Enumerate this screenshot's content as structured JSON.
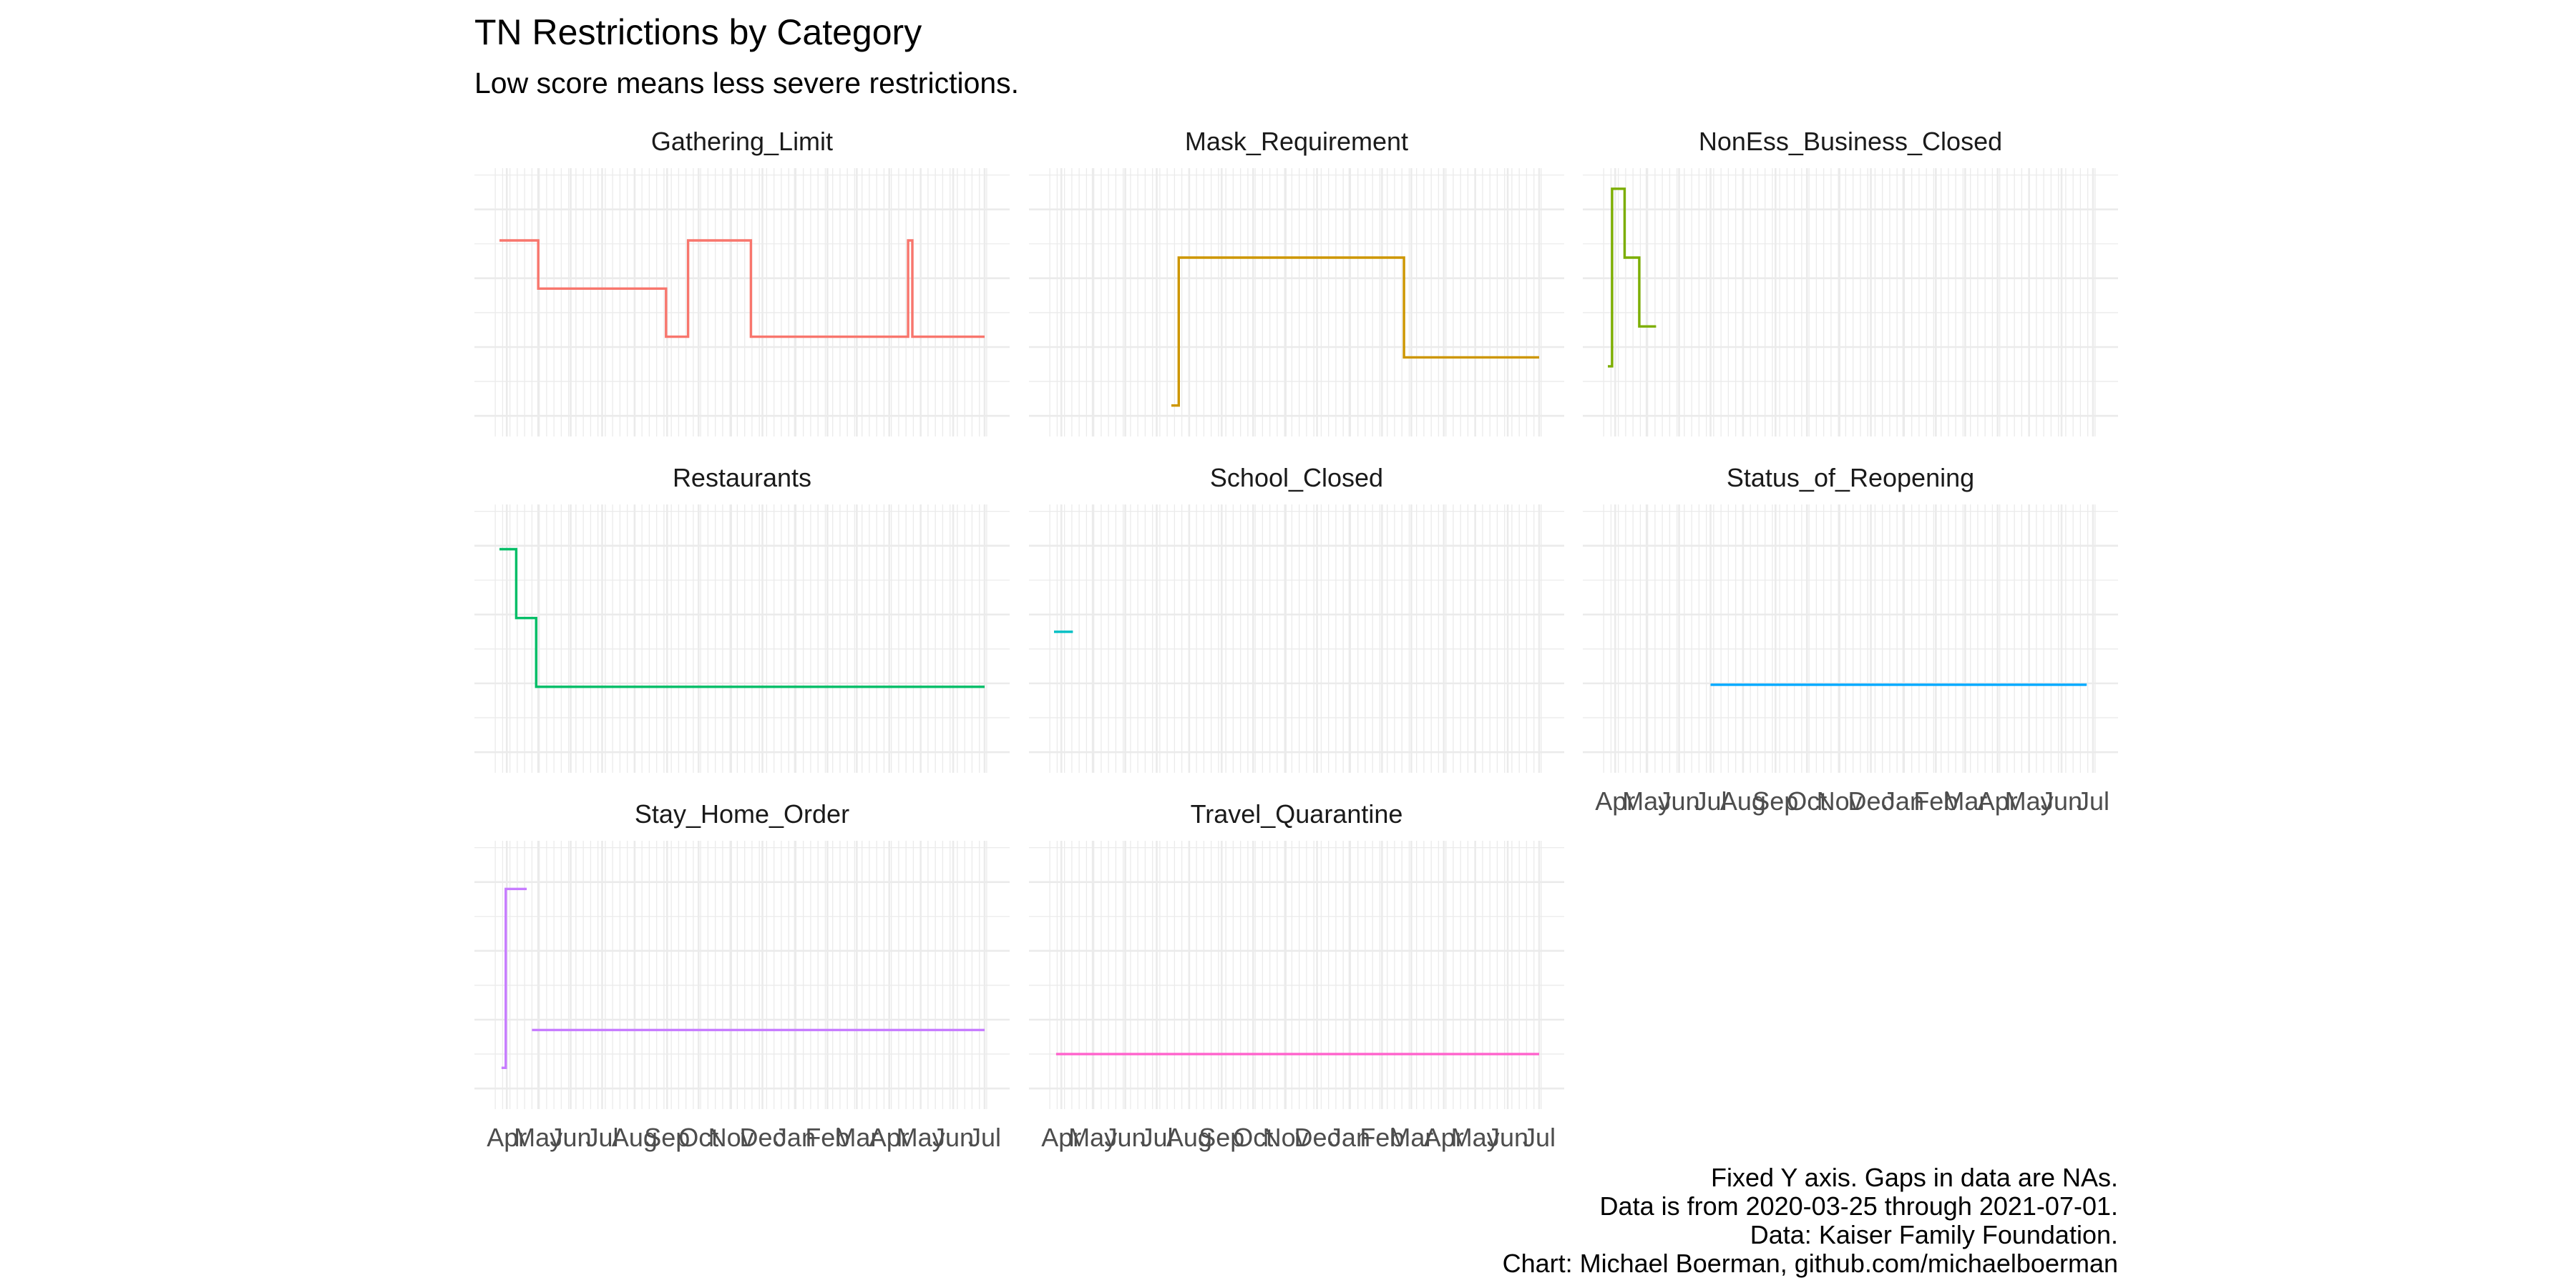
{
  "chart_data": {
    "type": "line",
    "title": "TN Restrictions by Category",
    "subtitle": "Low score means less severe restrictions.",
    "caption": [
      "Fixed Y axis. Gaps in data are NAs.",
      "Data is from 2020-03-25 through 2021-07-01.",
      "Data: Kaiser Family Foundation.",
      "Chart: Michael Boerman, github.com/michaelboerman"
    ],
    "facet_scales": "fixed y",
    "x_range": [
      "2020-03-25",
      "2021-07-01"
    ],
    "y_range": [
      -0.3,
      3.6
    ],
    "y_major_ticks": [
      0,
      1,
      2,
      3
    ],
    "y_tick_labels_shown": false,
    "grid": true,
    "x_tick_labels": [
      "Apr",
      "May",
      "Jun",
      "Jul",
      "Aug",
      "Sep",
      "Oct",
      "Nov",
      "Dec",
      "Jan",
      "Feb",
      "Mar",
      "Apr",
      "May",
      "Jun",
      "Jul"
    ],
    "x_ticks": [
      "2020-04-01",
      "2020-05-01",
      "2020-06-01",
      "2020-07-01",
      "2020-08-01",
      "2020-09-01",
      "2020-10-01",
      "2020-11-01",
      "2020-12-01",
      "2021-01-01",
      "2021-02-01",
      "2021-03-01",
      "2021-04-01",
      "2021-05-01",
      "2021-06-01",
      "2021-07-01"
    ],
    "panels": [
      {
        "name": "Gathering_Limit",
        "color": "#F8766D",
        "x": [
          "2020-03-25",
          "2020-05-01",
          "2020-05-01",
          "2020-08-31",
          "2020-08-31",
          "2020-09-21",
          "2020-09-21",
          "2020-11-20",
          "2020-11-20",
          "2021-04-19",
          "2021-04-19",
          "2021-04-23",
          "2021-04-23",
          "2021-07-01"
        ],
        "y": [
          2.55,
          2.55,
          1.85,
          1.85,
          1.15,
          1.15,
          2.55,
          2.55,
          1.15,
          1.15,
          2.55,
          2.55,
          1.15,
          1.15
        ]
      },
      {
        "name": "Mask_Requirement",
        "color": "#CD9600",
        "x": [
          "2020-07-15",
          "2020-07-22",
          "2020-07-22",
          "2021-02-22",
          "2021-02-22",
          "2021-07-01"
        ],
        "y": [
          0.15,
          0.15,
          2.3,
          2.3,
          0.85,
          0.85
        ]
      },
      {
        "name": "NonEss_Business_Closed",
        "color": "#7CAE00",
        "x": [
          "2020-03-25",
          "2020-03-29",
          "2020-03-29",
          "2020-04-10",
          "2020-04-10",
          "2020-04-24",
          "2020-04-24",
          "2020-05-01",
          "2020-05-01",
          "2020-05-10"
        ],
        "y": [
          0.72,
          0.72,
          3.3,
          3.3,
          2.3,
          2.3,
          1.3,
          1.3,
          1.3,
          1.3
        ]
      },
      {
        "name": "Restaurants",
        "color": "#00BE67",
        "x": [
          "2020-03-25",
          "2020-04-10",
          "2020-04-10",
          "2020-04-29",
          "2020-04-29",
          "2021-07-01"
        ],
        "y": [
          2.95,
          2.95,
          1.95,
          1.95,
          0.95,
          0.95
        ]
      },
      {
        "name": "School_Closed",
        "color": "#00BFC4",
        "x": [
          "2020-03-25",
          "2020-04-12"
        ],
        "y": [
          1.75,
          1.75
        ]
      },
      {
        "name": "Status_of_Reopening",
        "color": "#00A9FF",
        "x": [
          "2020-07-01",
          "2021-06-25"
        ],
        "y": [
          0.98,
          0.98
        ]
      },
      {
        "name": "Stay_Home_Order",
        "color": "#C77CFF",
        "x": [
          "2020-03-27",
          "2020-03-31",
          "2020-03-31",
          "2020-04-20",
          "2020-04-20",
          "2020-04-25",
          "2020-04-25",
          "2021-07-01"
        ],
        "y": [
          0.3,
          0.3,
          2.9,
          2.9,
          null,
          null,
          0.85,
          0.85
        ]
      },
      {
        "name": "Travel_Quarantine",
        "color": "#FF61CC",
        "x": [
          "2020-03-27",
          "2021-07-01"
        ],
        "y": [
          0.5,
          0.5
        ]
      }
    ]
  }
}
